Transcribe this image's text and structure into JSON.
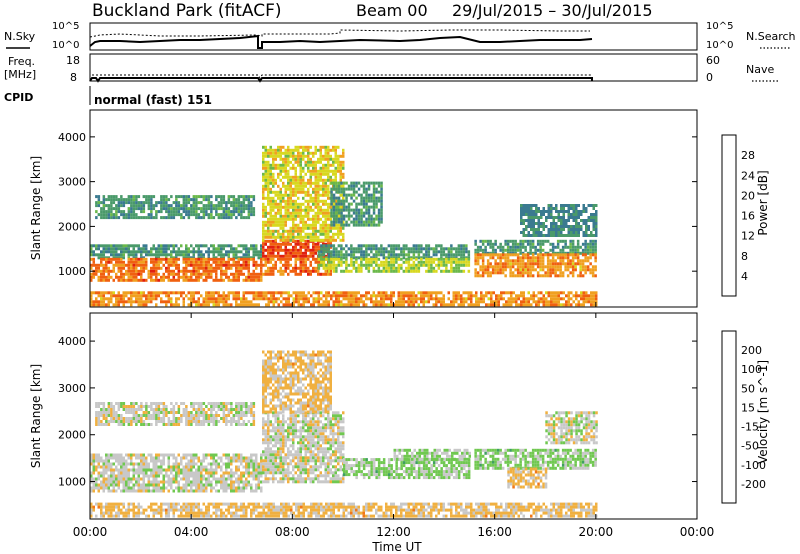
{
  "header": {
    "station": "Buckland Park (fitACF)",
    "beam": "Beam 00",
    "date_range": "29/Jul/2015 – 30/Jul/2015"
  },
  "noise_panel": {
    "left_label": "N.Sky",
    "right_label": "N.Search",
    "left_ticks": [
      "10^5",
      "10^0"
    ],
    "right_ticks": [
      "10^5",
      "10^0"
    ]
  },
  "freq_panel": {
    "left_label_line1": "Freq.",
    "left_label_line2": "[MHz]",
    "right_label": "Nave",
    "left_ticks": [
      "18",
      "8"
    ],
    "right_ticks": [
      "60",
      "0"
    ]
  },
  "cpid": {
    "label": "CPID",
    "value": "normal (fast) 151"
  },
  "x_axis": {
    "label": "Time UT",
    "ticks": [
      "00:00",
      "04:00",
      "08:00",
      "12:00",
      "16:00",
      "20:00",
      "00:00"
    ],
    "range_hours": [
      0,
      24
    ]
  },
  "colors": {
    "power_scale": [
      "#2020e0",
      "#2a55b0",
      "#3a7a90",
      "#4a9a6a",
      "#6ab84a",
      "#d8d820",
      "#f0a020",
      "#f06010",
      "#e02010"
    ],
    "velocity_scale": [
      "#e01010",
      "#f04010",
      "#f07818",
      "#f0b040",
      "#c8c8c8",
      "#70c850",
      "#40a060",
      "#2a6a8a",
      "#2030b0"
    ],
    "noise_line": "#000000"
  },
  "chart_data": [
    {
      "type": "heatmap",
      "name": "power",
      "ylabel": "Slant Range [km]",
      "y_ticks": [
        1000,
        2000,
        3000,
        4000
      ],
      "ylim": [
        200,
        4600
      ],
      "colorbar_label": "Power [dB]",
      "colorbar_ticks": [
        "28",
        "24",
        "20",
        "16",
        "12",
        "8",
        "4"
      ],
      "colorbar_range": [
        0,
        32
      ],
      "regions": [
        {
          "t": [
            0.0,
            6.8
          ],
          "r": [
            1300,
            1600
          ],
          "value": 12
        },
        {
          "t": [
            0.0,
            6.8
          ],
          "r": [
            800,
            1300
          ],
          "value": 26
        },
        {
          "t": [
            0.2,
            6.5
          ],
          "r": [
            2200,
            2700
          ],
          "value": 12
        },
        {
          "t": [
            6.8,
            9.5
          ],
          "r": [
            1300,
            1700
          ],
          "value": 28
        },
        {
          "t": [
            6.8,
            9.5
          ],
          "r": [
            900,
            1300
          ],
          "value": 26
        },
        {
          "t": [
            6.8,
            10.0
          ],
          "r": [
            1700,
            3800
          ],
          "value": 20
        },
        {
          "t": [
            9.0,
            15.0
          ],
          "r": [
            1300,
            1600
          ],
          "value": 12
        },
        {
          "t": [
            9.0,
            15.0
          ],
          "r": [
            1000,
            1300
          ],
          "value": 18
        },
        {
          "t": [
            9.5,
            11.5
          ],
          "r": [
            2000,
            3000
          ],
          "value": 12
        },
        {
          "t": [
            15.2,
            20.0
          ],
          "r": [
            1400,
            1700
          ],
          "value": 12
        },
        {
          "t": [
            15.2,
            20.0
          ],
          "r": [
            900,
            1400
          ],
          "value": 24
        },
        {
          "t": [
            17.0,
            20.0
          ],
          "r": [
            1800,
            2500
          ],
          "value": 10
        },
        {
          "t": [
            0.0,
            20.0
          ],
          "r": [
            250,
            550
          ],
          "value": 24
        }
      ]
    },
    {
      "type": "heatmap",
      "name": "velocity",
      "ylabel": "Slant Range [km]",
      "y_ticks": [
        1000,
        2000,
        3000,
        4000
      ],
      "ylim": [
        200,
        4600
      ],
      "colorbar_label": "Velocity [m s^-1]",
      "colorbar_ticks": [
        "200",
        "100",
        "50",
        "15",
        "-15",
        "-50",
        "-100",
        "-200"
      ],
      "colorbar_range": [
        -250,
        250
      ],
      "regions": [
        {
          "t": [
            0.0,
            6.8
          ],
          "r": [
            800,
            1600
          ],
          "value": 0
        },
        {
          "t": [
            0.2,
            6.5
          ],
          "r": [
            2200,
            2700
          ],
          "value": 0
        },
        {
          "t": [
            6.8,
            10.0
          ],
          "r": [
            1000,
            2500
          ],
          "value": 0
        },
        {
          "t": [
            6.8,
            9.5
          ],
          "r": [
            2500,
            3800
          ],
          "value": -40
        },
        {
          "t": [
            10.0,
            15.0
          ],
          "r": [
            1100,
            1500
          ],
          "value": 40
        },
        {
          "t": [
            12.0,
            15.0
          ],
          "r": [
            1500,
            1700
          ],
          "value": 30
        },
        {
          "t": [
            15.2,
            20.0
          ],
          "r": [
            1300,
            1700
          ],
          "value": 40
        },
        {
          "t": [
            16.5,
            18.0
          ],
          "r": [
            900,
            1300
          ],
          "value": -40
        },
        {
          "t": [
            18.0,
            20.0
          ],
          "r": [
            1800,
            2500
          ],
          "value": 0
        },
        {
          "t": [
            0.0,
            20.0
          ],
          "r": [
            250,
            550
          ],
          "value": -40
        }
      ]
    }
  ]
}
